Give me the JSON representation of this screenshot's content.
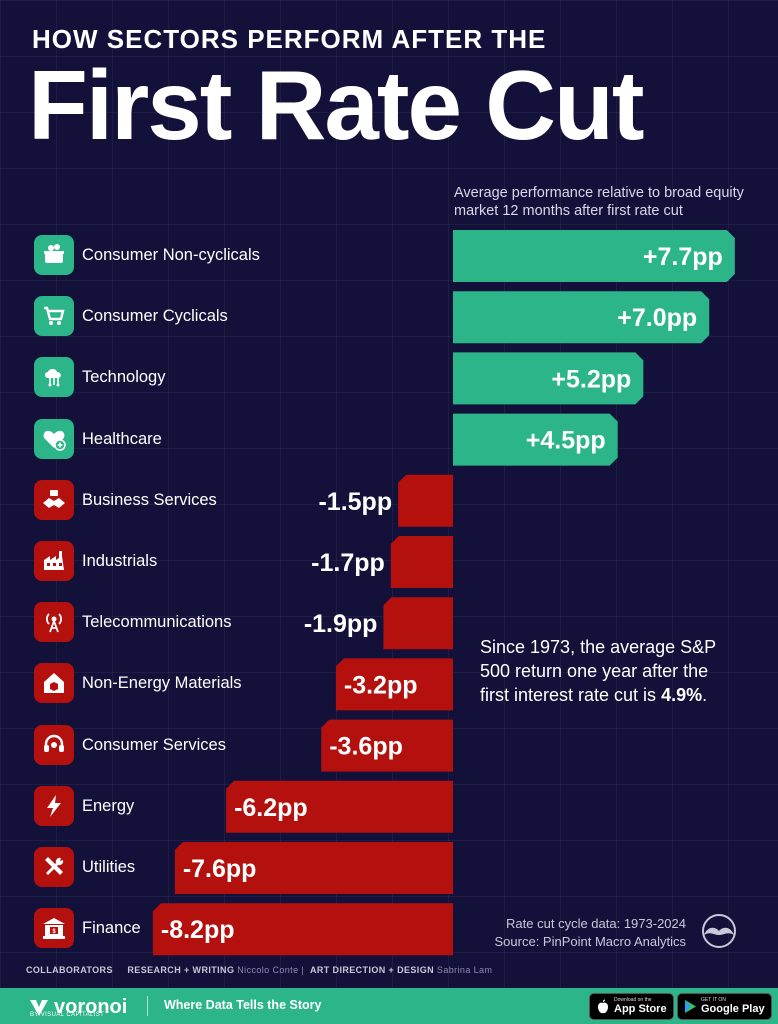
{
  "header": {
    "kicker": "HOW SECTORS PERFORM AFTER THE",
    "title": "First Rate Cut"
  },
  "chart_data": {
    "type": "bar",
    "orientation": "horizontal",
    "note": "Average performance relative to broad equity market 12 months after first rate cut",
    "categories": [
      "Consumer Non-cyclicals",
      "Consumer Cyclicals",
      "Technology",
      "Healthcare",
      "Business Services",
      "Industrials",
      "Telecommunications",
      "Non-Energy Materials",
      "Consumer Services",
      "Energy",
      "Utilities",
      "Finance"
    ],
    "values": [
      7.7,
      7.0,
      5.2,
      4.5,
      -1.5,
      -1.7,
      -1.9,
      -3.2,
      -3.6,
      -6.2,
      -7.6,
      -8.2
    ],
    "value_labels": [
      "+7.7pp",
      "+7.0pp",
      "+5.2pp",
      "+4.5pp",
      "-1.5pp",
      "-1.7pp",
      "-1.9pp",
      "-3.2pp",
      "-3.6pp",
      "-6.2pp",
      "-7.6pp",
      "-8.2pp"
    ],
    "icons": [
      "basket-icon",
      "cart-icon",
      "cloud-network-icon",
      "heart-plus-icon",
      "handshake-icon",
      "factory-icon",
      "antenna-icon",
      "house-box-icon",
      "headset-icon",
      "lightning-icon",
      "tools-icon",
      "bank-icon"
    ],
    "colors": {
      "positive": "#2bb589",
      "negative": "#b3100e"
    }
  },
  "callout": {
    "text_before": "Since 1973, the average S&P 500 return one year after the first interest rate cut is ",
    "highlight": "4.9%",
    "text_after": "."
  },
  "source": {
    "line1": "Rate cut cycle data: 1973-2024",
    "line2": "Source: PinPoint Macro Analytics"
  },
  "credits": {
    "collaborators": "COLLABORATORS",
    "research_label": "RESEARCH + WRITING",
    "research_name": "Niccolo Conte",
    "art_label": "ART DIRECTION + DESIGN",
    "art_name": "Sabrina Lam"
  },
  "footer": {
    "brand": "voronoi",
    "brand_sub": "BY VISUAL CAPITALIST",
    "tagline": "Where Data Tells the Story",
    "app_store_small": "Download on the",
    "app_store": "App Store",
    "google_small": "GET IT ON",
    "google": "Google Play"
  }
}
